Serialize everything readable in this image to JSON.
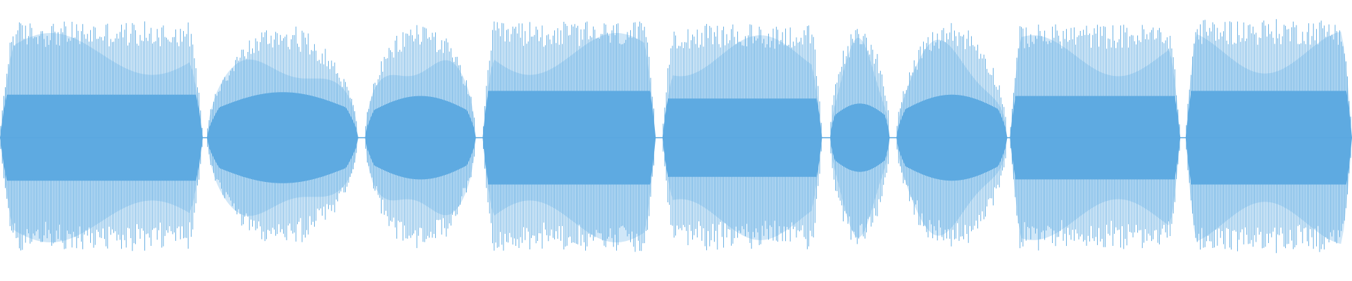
{
  "waveform": {
    "colors": {
      "background": "#ffffff",
      "stroke_peak": "#5aa8e0",
      "fill_body": "#5eaae1",
      "halo": "#a9d3f2"
    },
    "segments": [
      {
        "start": 0.0,
        "end": 0.15,
        "peak": 0.92,
        "body": 0.34,
        "shape": "gate"
      },
      {
        "start": 0.153,
        "end": 0.265,
        "peak": 0.9,
        "body": 0.36,
        "shape": "bulge"
      },
      {
        "start": 0.27,
        "end": 0.352,
        "peak": 0.92,
        "body": 0.33,
        "shape": "bulge"
      },
      {
        "start": 0.357,
        "end": 0.485,
        "peak": 0.92,
        "body": 0.37,
        "shape": "gate"
      },
      {
        "start": 0.49,
        "end": 0.608,
        "peak": 0.9,
        "body": 0.31,
        "shape": "gate"
      },
      {
        "start": 0.614,
        "end": 0.658,
        "peak": 0.88,
        "body": 0.27,
        "shape": "bulge"
      },
      {
        "start": 0.663,
        "end": 0.745,
        "peak": 0.92,
        "body": 0.34,
        "shape": "bulge"
      },
      {
        "start": 0.747,
        "end": 0.873,
        "peak": 0.9,
        "body": 0.33,
        "shape": "gate"
      },
      {
        "start": 0.877,
        "end": 1.0,
        "peak": 0.94,
        "body": 0.37,
        "shape": "gate"
      }
    ]
  }
}
